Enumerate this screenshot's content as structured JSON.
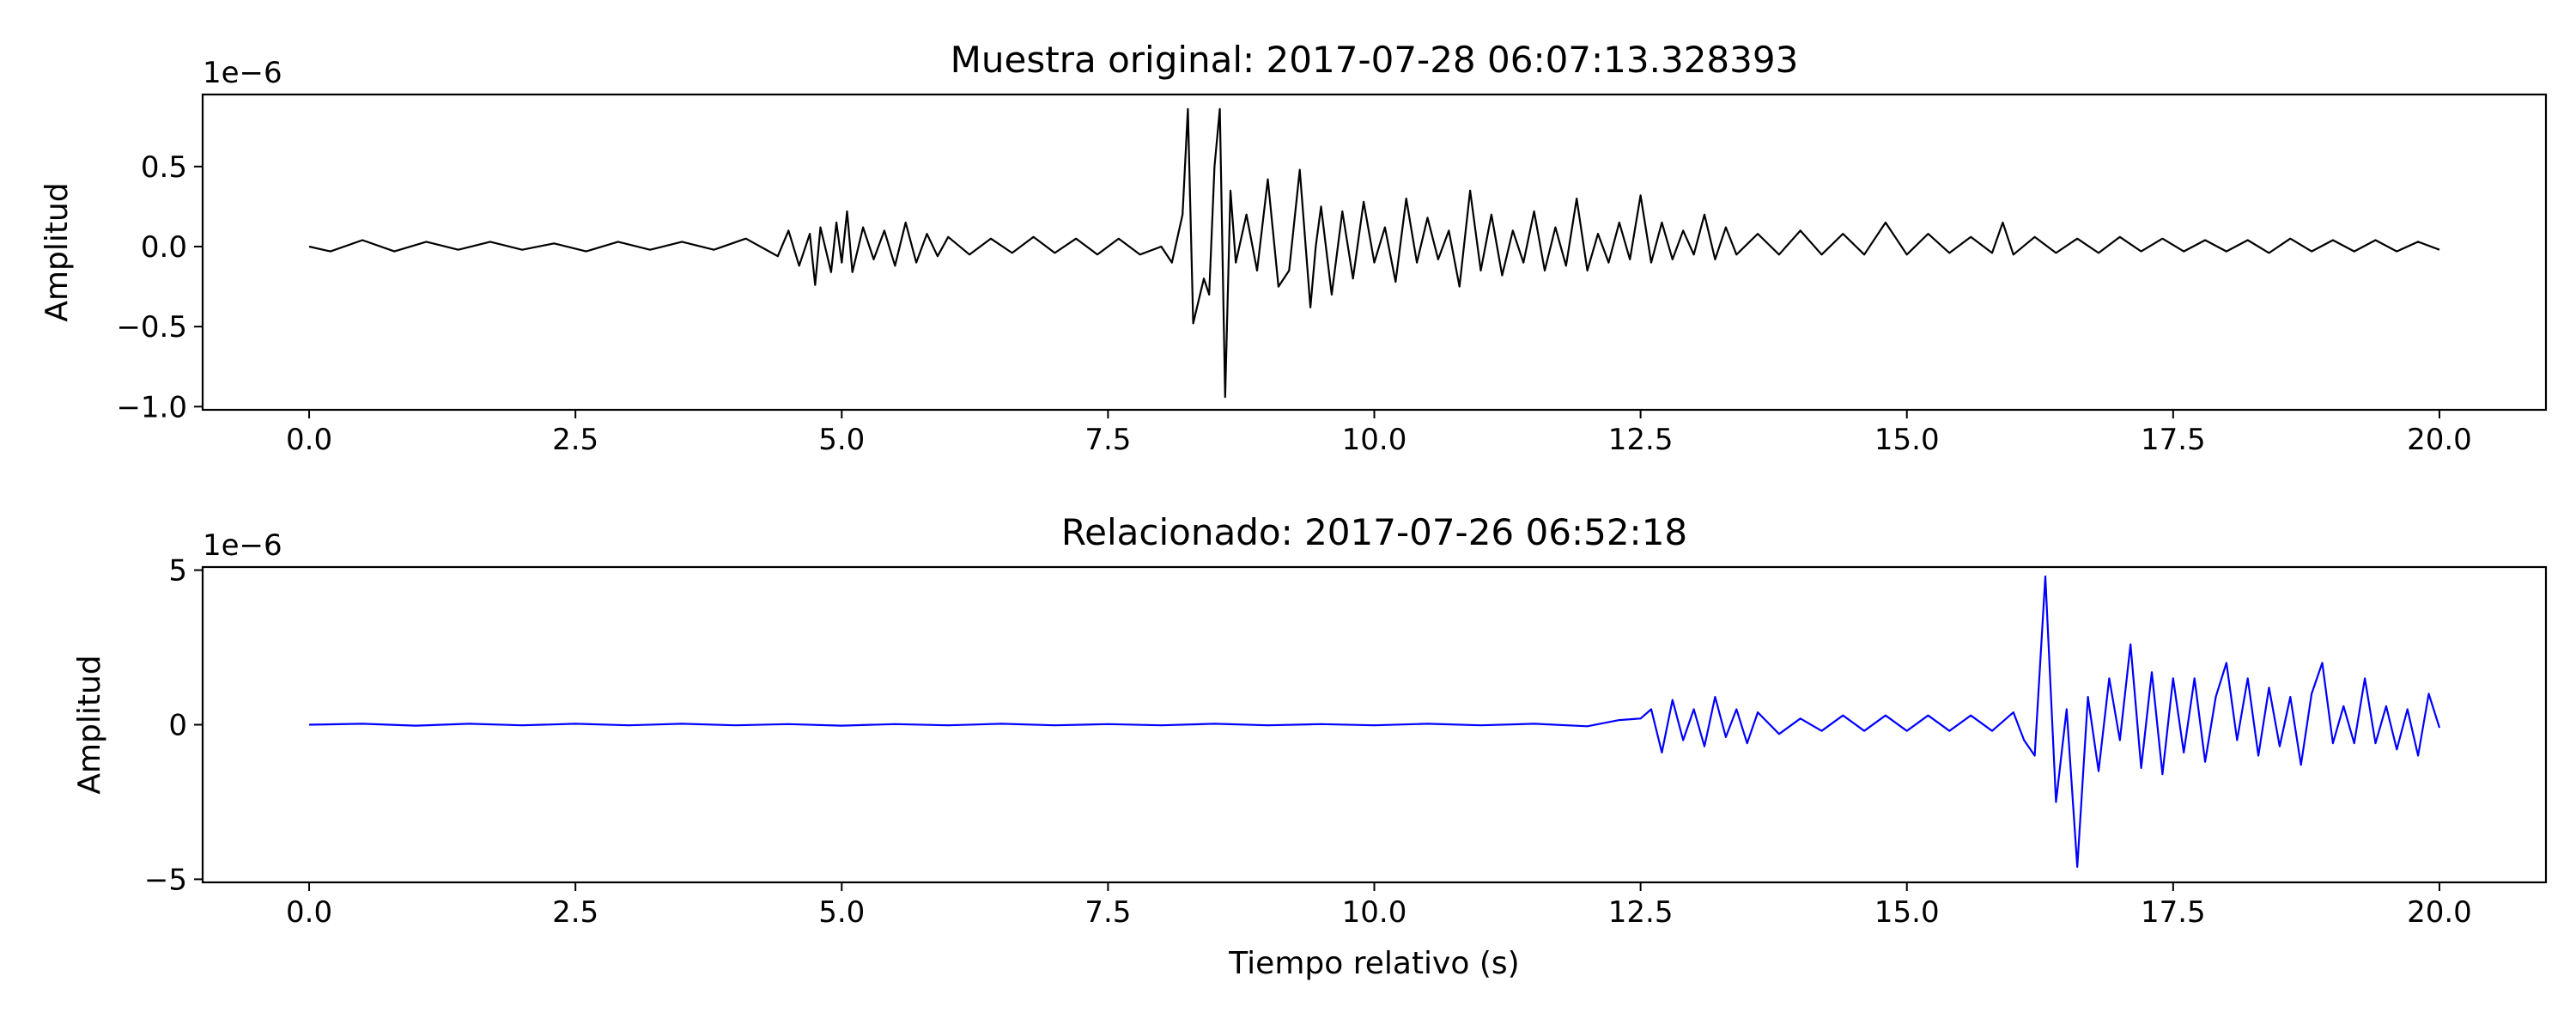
{
  "chart_data": [
    {
      "type": "line",
      "title": "Muestra original: 2017-07-28 06:07:13.328393",
      "ylabel": "Amplitud",
      "xlabel": "",
      "offset_label": "1e−6",
      "xlim": [
        -1.0,
        21.0
      ],
      "ylim": [
        -1.02,
        0.95
      ],
      "xticks": [
        0.0,
        2.5,
        5.0,
        7.5,
        10.0,
        12.5,
        15.0,
        17.5,
        20.0
      ],
      "xtick_labels": [
        "0.0",
        "2.5",
        "5.0",
        "7.5",
        "10.0",
        "12.5",
        "15.0",
        "17.5",
        "20.0"
      ],
      "yticks": [
        0.5,
        0.0,
        -0.5,
        -1.0
      ],
      "ytick_labels": [
        "0.5",
        "0.0",
        "−0.5",
        "−1.0"
      ],
      "grid": false,
      "color": "#000000",
      "series": [
        {
          "x": [
            0.0,
            0.2,
            0.5,
            0.8,
            1.1,
            1.4,
            1.7,
            2.0,
            2.3,
            2.6,
            2.9,
            3.2,
            3.5,
            3.8,
            4.1,
            4.4,
            4.5,
            4.6,
            4.7,
            4.75,
            4.8,
            4.9,
            4.95,
            5.0,
            5.05,
            5.1,
            5.2,
            5.3,
            5.4,
            5.5,
            5.6,
            5.7,
            5.8,
            5.9,
            6.0,
            6.2,
            6.4,
            6.6,
            6.8,
            7.0,
            7.2,
            7.4,
            7.6,
            7.8,
            8.0,
            8.1,
            8.2,
            8.25,
            8.3,
            8.4,
            8.45,
            8.5,
            8.55,
            8.6,
            8.65,
            8.7,
            8.8,
            8.9,
            9.0,
            9.1,
            9.2,
            9.3,
            9.4,
            9.45,
            9.5,
            9.6,
            9.7,
            9.8,
            9.9,
            10.0,
            10.1,
            10.2,
            10.3,
            10.4,
            10.5,
            10.6,
            10.7,
            10.8,
            10.9,
            11.0,
            11.1,
            11.2,
            11.3,
            11.4,
            11.5,
            11.6,
            11.7,
            11.8,
            11.9,
            12.0,
            12.1,
            12.2,
            12.3,
            12.4,
            12.5,
            12.6,
            12.7,
            12.8,
            12.9,
            13.0,
            13.1,
            13.2,
            13.3,
            13.4,
            13.6,
            13.8,
            14.0,
            14.2,
            14.4,
            14.6,
            14.8,
            15.0,
            15.2,
            15.4,
            15.6,
            15.8,
            15.9,
            16.0,
            16.2,
            16.4,
            16.6,
            16.8,
            17.0,
            17.2,
            17.4,
            17.6,
            17.8,
            18.0,
            18.2,
            18.4,
            18.6,
            18.8,
            19.0,
            19.2,
            19.4,
            19.6,
            19.8,
            20.0
          ],
          "y": [
            0.0,
            -0.03,
            0.04,
            -0.03,
            0.03,
            -0.02,
            0.03,
            -0.02,
            0.02,
            -0.03,
            0.03,
            -0.02,
            0.03,
            -0.02,
            0.05,
            -0.06,
            0.1,
            -0.12,
            0.08,
            -0.24,
            0.12,
            -0.16,
            0.15,
            -0.1,
            0.22,
            -0.16,
            0.12,
            -0.08,
            0.1,
            -0.12,
            0.15,
            -0.1,
            0.08,
            -0.06,
            0.06,
            -0.05,
            0.05,
            -0.04,
            0.06,
            -0.04,
            0.05,
            -0.05,
            0.05,
            -0.05,
            0.0,
            -0.1,
            0.2,
            0.86,
            -0.48,
            -0.2,
            -0.3,
            0.5,
            0.86,
            -0.94,
            0.35,
            -0.1,
            0.2,
            -0.15,
            0.42,
            -0.25,
            -0.15,
            0.48,
            -0.38,
            0.0,
            0.25,
            -0.3,
            0.22,
            -0.2,
            0.28,
            -0.1,
            0.12,
            -0.22,
            0.3,
            -0.1,
            0.18,
            -0.08,
            0.1,
            -0.25,
            0.35,
            -0.15,
            0.2,
            -0.18,
            0.1,
            -0.1,
            0.22,
            -0.15,
            0.12,
            -0.12,
            0.3,
            -0.15,
            0.08,
            -0.1,
            0.15,
            -0.08,
            0.32,
            -0.1,
            0.15,
            -0.08,
            0.1,
            -0.05,
            0.2,
            -0.08,
            0.12,
            -0.05,
            0.08,
            -0.05,
            0.1,
            -0.05,
            0.08,
            -0.05,
            0.15,
            -0.05,
            0.08,
            -0.04,
            0.06,
            -0.04,
            0.15,
            -0.05,
            0.06,
            -0.04,
            0.05,
            -0.04,
            0.06,
            -0.03,
            0.05,
            -0.03,
            0.04,
            -0.03,
            0.04,
            -0.04,
            0.05,
            -0.03,
            0.04,
            -0.03,
            0.04,
            -0.03,
            0.03,
            -0.02
          ]
        }
      ]
    },
    {
      "type": "line",
      "title": "Relacionado: 2017-07-26 06:52:18",
      "ylabel": "Amplitud",
      "xlabel": "Tiempo relativo (s)",
      "offset_label": "1e−6",
      "xlim": [
        -1.0,
        21.0
      ],
      "ylim": [
        -5.1,
        5.1
      ],
      "xticks": [
        0.0,
        2.5,
        5.0,
        7.5,
        10.0,
        12.5,
        15.0,
        17.5,
        20.0
      ],
      "xtick_labels": [
        "0.0",
        "2.5",
        "5.0",
        "7.5",
        "10.0",
        "12.5",
        "15.0",
        "17.5",
        "20.0"
      ],
      "yticks": [
        5,
        0,
        -5
      ],
      "ytick_labels": [
        "5",
        "0",
        "−5"
      ],
      "grid": false,
      "color": "#0000ff",
      "series": [
        {
          "x": [
            0.0,
            0.5,
            1.0,
            1.5,
            2.0,
            2.5,
            3.0,
            3.5,
            4.0,
            4.5,
            5.0,
            5.5,
            6.0,
            6.5,
            7.0,
            7.5,
            8.0,
            8.5,
            9.0,
            9.5,
            10.0,
            10.5,
            11.0,
            11.5,
            12.0,
            12.3,
            12.5,
            12.6,
            12.7,
            12.8,
            12.9,
            13.0,
            13.1,
            13.2,
            13.3,
            13.4,
            13.5,
            13.6,
            13.8,
            14.0,
            14.2,
            14.4,
            14.6,
            14.8,
            15.0,
            15.2,
            15.4,
            15.6,
            15.8,
            16.0,
            16.1,
            16.2,
            16.3,
            16.4,
            16.5,
            16.6,
            16.7,
            16.8,
            16.9,
            17.0,
            17.1,
            17.2,
            17.3,
            17.4,
            17.5,
            17.6,
            17.7,
            17.8,
            17.9,
            18.0,
            18.1,
            18.2,
            18.3,
            18.4,
            18.5,
            18.6,
            18.7,
            18.8,
            18.9,
            19.0,
            19.1,
            19.2,
            19.3,
            19.4,
            19.5,
            19.6,
            19.7,
            19.8,
            19.9,
            20.0
          ],
          "y": [
            0.0,
            0.03,
            -0.03,
            0.03,
            -0.02,
            0.03,
            -0.02,
            0.03,
            -0.02,
            0.02,
            -0.03,
            0.02,
            -0.02,
            0.03,
            -0.02,
            0.02,
            -0.02,
            0.03,
            -0.02,
            0.02,
            -0.02,
            0.03,
            -0.02,
            0.03,
            -0.05,
            0.15,
            0.2,
            0.5,
            -0.9,
            0.8,
            -0.5,
            0.5,
            -0.7,
            0.9,
            -0.4,
            0.5,
            -0.6,
            0.4,
            -0.3,
            0.2,
            -0.2,
            0.3,
            -0.2,
            0.3,
            -0.2,
            0.3,
            -0.2,
            0.3,
            -0.2,
            0.4,
            -0.5,
            -1.0,
            4.8,
            -2.5,
            0.5,
            -4.6,
            0.9,
            -1.5,
            1.5,
            -0.5,
            2.6,
            -1.4,
            1.7,
            -1.6,
            1.5,
            -0.9,
            1.5,
            -1.2,
            0.9,
            2.0,
            -0.5,
            1.5,
            -1.0,
            1.2,
            -0.7,
            0.9,
            -1.3,
            1.0,
            2.0,
            -0.6,
            0.6,
            -0.6,
            1.5,
            -0.6,
            0.6,
            -0.8,
            0.5,
            -1.0,
            1.0,
            -0.1
          ]
        }
      ]
    }
  ]
}
